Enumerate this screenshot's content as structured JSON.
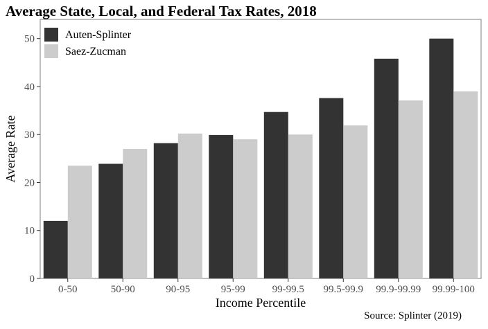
{
  "chart_data": {
    "type": "bar",
    "title": "Average State, Local, and Federal Tax Rates, 2018",
    "xlabel": "Income Percentile",
    "ylabel": "Average Rate",
    "source": "Source: Splinter (2019)",
    "categories": [
      "0-50",
      "50-90",
      "90-95",
      "95-99",
      "99-99.5",
      "99.5-99.9",
      "99.9-99.99",
      "99.99-100"
    ],
    "ylim": [
      0,
      54
    ],
    "yticks": [
      0,
      10,
      20,
      30,
      40,
      50
    ],
    "grid": false,
    "legend_position": "top-left",
    "series": [
      {
        "name": "Auten-Splinter",
        "color": "#333333",
        "values": [
          12,
          23.9,
          28.2,
          29.9,
          34.7,
          37.6,
          45.8,
          50.0
        ]
      },
      {
        "name": "Saez-Zucman",
        "color": "#cccccc",
        "values": [
          23.5,
          27.0,
          30.2,
          29.0,
          30.0,
          31.9,
          37.1,
          39.0
        ]
      }
    ]
  }
}
